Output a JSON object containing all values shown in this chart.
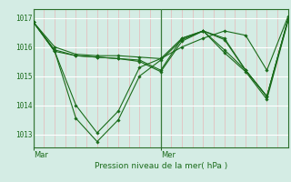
{
  "background_color": "#d4ece4",
  "plot_bg_color": "#d4ece4",
  "line_color": "#1a6b1a",
  "grid_color_major_h": "#ffffff",
  "grid_color_minor_v": "#e8b8b8",
  "spine_color": "#2a6e2a",
  "title": "Pression niveau de la mer( hPa )",
  "xlabel_Mar": "Mar",
  "xlabel_Mer": "Mer",
  "ylabel_ticks": [
    1013,
    1014,
    1015,
    1016,
    1017
  ],
  "ylim": [
    1012.55,
    1017.3
  ],
  "xlim": [
    0,
    48
  ],
  "x_mar": 0,
  "x_mer": 24,
  "ver_line_color": "#3a7a3a",
  "series": [
    [
      0,
      1016.85,
      4,
      1016.0,
      8,
      1015.75,
      12,
      1015.7,
      16,
      1015.7,
      20,
      1015.65,
      24,
      1015.6,
      28,
      1016.0,
      32,
      1016.3,
      36,
      1016.55,
      40,
      1016.4,
      44,
      1015.2,
      48,
      1017.05
    ],
    [
      0,
      1016.85,
      4,
      1015.85,
      8,
      1015.7,
      12,
      1015.65,
      16,
      1015.6,
      20,
      1015.5,
      24,
      1015.15,
      28,
      1016.2,
      32,
      1016.55,
      36,
      1016.3,
      40,
      1015.2,
      44,
      1014.3,
      48,
      1016.95
    ],
    [
      0,
      1016.85,
      4,
      1015.85,
      8,
      1014.0,
      12,
      1013.05,
      16,
      1013.8,
      20,
      1015.3,
      24,
      1015.6,
      28,
      1016.3,
      32,
      1016.55,
      36,
      1015.9,
      40,
      1015.2,
      44,
      1014.3,
      48,
      1016.95
    ],
    [
      0,
      1016.85,
      4,
      1015.85,
      8,
      1013.55,
      12,
      1012.75,
      16,
      1013.5,
      20,
      1015.0,
      24,
      1015.55,
      28,
      1016.25,
      32,
      1016.55,
      36,
      1015.8,
      40,
      1015.15,
      44,
      1014.2,
      48,
      1016.9
    ],
    [
      0,
      1016.85,
      4,
      1015.9,
      8,
      1015.7,
      12,
      1015.65,
      16,
      1015.6,
      20,
      1015.55,
      24,
      1015.2,
      28,
      1016.3,
      32,
      1016.55,
      36,
      1016.25,
      40,
      1015.2,
      44,
      1014.3,
      48,
      1016.95
    ]
  ]
}
